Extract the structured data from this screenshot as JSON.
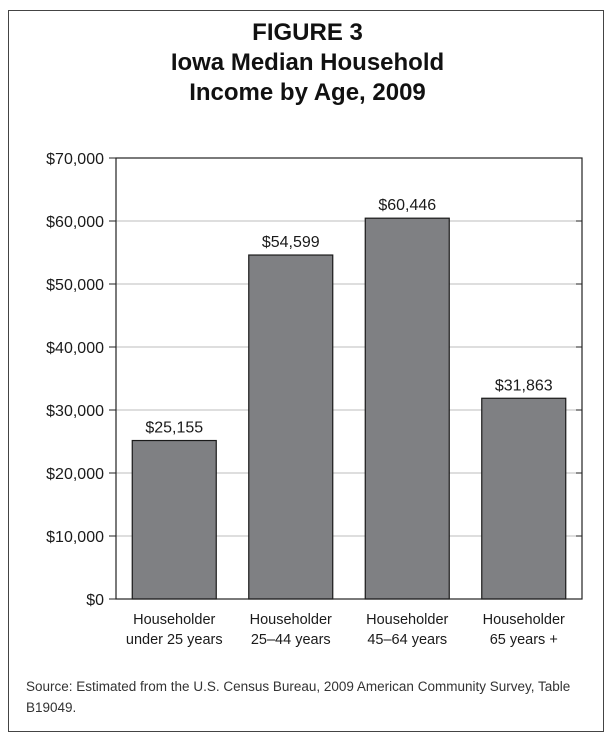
{
  "figure": {
    "label": "FIGURE 3",
    "title_line1": "Iowa Median Household",
    "title_line2": "Income by Age, 2009"
  },
  "source": "Source: Estimated from the U.S. Census Bureau, 2009 American Community Survey, Table B19049.",
  "chart_data": {
    "type": "bar",
    "title": "Iowa Median Household Income by Age, 2009",
    "categories": [
      [
        "Householder",
        "under 25 years"
      ],
      [
        "Householder",
        "25–44 years"
      ],
      [
        "Householder",
        "45–64 years"
      ],
      [
        "Householder",
        "65 years +"
      ]
    ],
    "values": [
      25155,
      54599,
      60446,
      31863
    ],
    "data_labels": [
      "$25,155",
      "$54,599",
      "$60,446",
      "$31,863"
    ],
    "y_ticks": [
      0,
      10000,
      20000,
      30000,
      40000,
      50000,
      60000,
      70000
    ],
    "y_tick_labels": [
      "$0",
      "$10,000",
      "$20,000",
      "$30,000",
      "$40,000",
      "$50,000",
      "$60,000",
      "$70,000"
    ],
    "ylim": [
      0,
      70000
    ],
    "grid": true,
    "bar_color": "#7f8083",
    "xlabel": "",
    "ylabel": ""
  }
}
